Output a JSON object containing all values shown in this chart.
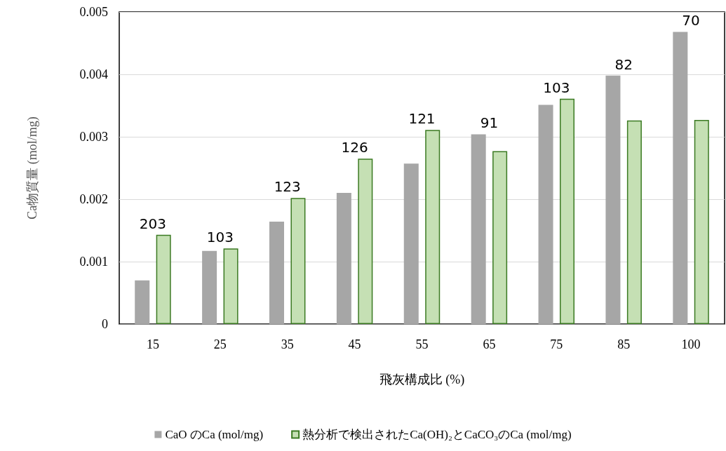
{
  "chart_data": {
    "type": "bar",
    "xlabel": "飛灰構成比 (%)",
    "ylabel": "Ca物質量 (mol/mg)",
    "categories": [
      "15",
      "25",
      "35",
      "45",
      "55",
      "65",
      "75",
      "85",
      "100"
    ],
    "series": [
      {
        "name": "CaO のCa (mol/mg)",
        "color": "#a6a6a6",
        "values": [
          0.0007,
          0.00117,
          0.00164,
          0.0021,
          0.00257,
          0.00304,
          0.00351,
          0.00398,
          0.00468
        ]
      },
      {
        "name": "熱分析で検出されたCa(OH)₂とCaCO₃のCa (mol/mg)",
        "color": "#c5e0b4",
        "values": [
          0.00143,
          0.00121,
          0.00202,
          0.00265,
          0.00311,
          0.00277,
          0.00361,
          0.00326,
          0.00327
        ]
      }
    ],
    "annotations": [
      "203",
      "103",
      "123",
      "126",
      "121",
      "91",
      "103",
      "82",
      "70"
    ],
    "ylim": [
      0,
      0.005
    ],
    "yticks": [
      0,
      0.001,
      0.002,
      0.003,
      0.004,
      0.005
    ],
    "grid": "y",
    "legend": "bottom"
  }
}
